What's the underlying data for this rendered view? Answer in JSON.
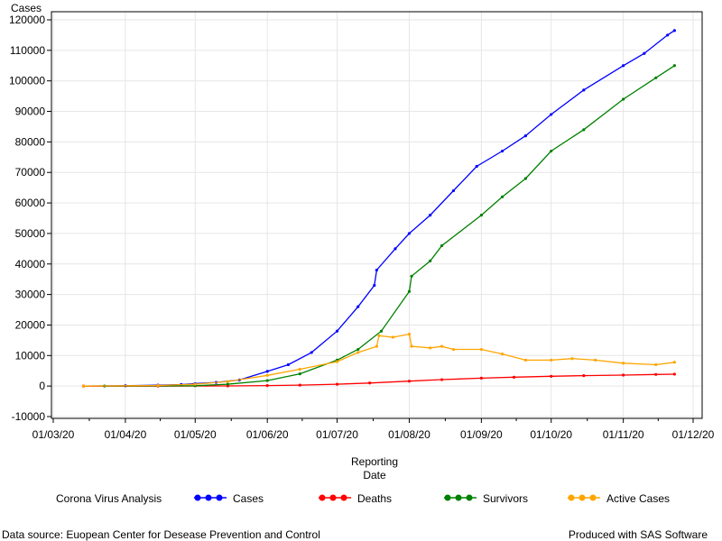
{
  "chart_data": {
    "type": "line",
    "ylabel": "Cases",
    "xlabel_lines": [
      "Reporting",
      "Date"
    ],
    "ylim": [
      -10000,
      120000
    ],
    "yticks": [
      -10000,
      0,
      10000,
      20000,
      30000,
      40000,
      50000,
      60000,
      70000,
      80000,
      90000,
      100000,
      110000,
      120000
    ],
    "xlim": [
      "2020-03-01",
      "2020-12-01"
    ],
    "xticks": [
      {
        "date": "2020-03-01",
        "label": "01/03/20"
      },
      {
        "date": "2020-04-01",
        "label": "01/04/20"
      },
      {
        "date": "2020-05-01",
        "label": "01/05/20"
      },
      {
        "date": "2020-06-01",
        "label": "01/06/20"
      },
      {
        "date": "2020-07-01",
        "label": "01/07/20"
      },
      {
        "date": "2020-08-01",
        "label": "01/08/20"
      },
      {
        "date": "2020-09-01",
        "label": "01/09/20"
      },
      {
        "date": "2020-10-01",
        "label": "01/10/20"
      },
      {
        "date": "2020-11-01",
        "label": "01/11/20"
      },
      {
        "date": "2020-12-01",
        "label": "01/12/20"
      }
    ],
    "grid": true,
    "legend_title": "Corona Virus Analysis",
    "legend_position": "bottom",
    "series": [
      {
        "name": "Cases",
        "color": "#0000ff",
        "points": [
          [
            "2020-03-14",
            0
          ],
          [
            "2020-04-01",
            100
          ],
          [
            "2020-04-15",
            300
          ],
          [
            "2020-04-25",
            500
          ],
          [
            "2020-05-01",
            800
          ],
          [
            "2020-05-10",
            1200
          ],
          [
            "2020-05-20",
            2000
          ],
          [
            "2020-06-01",
            4800
          ],
          [
            "2020-06-10",
            7000
          ],
          [
            "2020-06-20",
            11000
          ],
          [
            "2020-07-01",
            18000
          ],
          [
            "2020-07-10",
            26000
          ],
          [
            "2020-07-17",
            33000
          ],
          [
            "2020-07-18",
            38000
          ],
          [
            "2020-07-26",
            45000
          ],
          [
            "2020-08-01",
            50000
          ],
          [
            "2020-08-10",
            56000
          ],
          [
            "2020-08-20",
            64000
          ],
          [
            "2020-08-30",
            72000
          ],
          [
            "2020-09-10",
            77000
          ],
          [
            "2020-09-20",
            82000
          ],
          [
            "2020-10-01",
            89000
          ],
          [
            "2020-10-15",
            97000
          ],
          [
            "2020-11-01",
            105000
          ],
          [
            "2020-11-10",
            109000
          ],
          [
            "2020-11-20",
            115000
          ],
          [
            "2020-11-23",
            116500
          ]
        ]
      },
      {
        "name": "Deaths",
        "color": "#ff0000",
        "points": [
          [
            "2020-03-14",
            0
          ],
          [
            "2020-04-15",
            0
          ],
          [
            "2020-05-15",
            50
          ],
          [
            "2020-06-01",
            150
          ],
          [
            "2020-06-15",
            300
          ],
          [
            "2020-07-01",
            600
          ],
          [
            "2020-07-15",
            1000
          ],
          [
            "2020-08-01",
            1600
          ],
          [
            "2020-08-15",
            2100
          ],
          [
            "2020-09-01",
            2600
          ],
          [
            "2020-09-15",
            2900
          ],
          [
            "2020-10-01",
            3200
          ],
          [
            "2020-10-15",
            3400
          ],
          [
            "2020-11-01",
            3600
          ],
          [
            "2020-11-15",
            3800
          ],
          [
            "2020-11-23",
            3900
          ]
        ]
      },
      {
        "name": "Survivors",
        "color": "#008000",
        "points": [
          [
            "2020-03-23",
            0
          ],
          [
            "2020-05-01",
            100
          ],
          [
            "2020-05-15",
            600
          ],
          [
            "2020-06-01",
            1800
          ],
          [
            "2020-06-15",
            4000
          ],
          [
            "2020-07-01",
            8500
          ],
          [
            "2020-07-10",
            12000
          ],
          [
            "2020-07-20",
            18000
          ],
          [
            "2020-08-01",
            31000
          ],
          [
            "2020-08-02",
            36000
          ],
          [
            "2020-08-10",
            41000
          ],
          [
            "2020-08-15",
            46000
          ],
          [
            "2020-09-01",
            56000
          ],
          [
            "2020-09-10",
            62000
          ],
          [
            "2020-09-20",
            68000
          ],
          [
            "2020-10-01",
            77000
          ],
          [
            "2020-10-15",
            84000
          ],
          [
            "2020-11-01",
            94000
          ],
          [
            "2020-11-15",
            101000
          ],
          [
            "2020-11-23",
            105000
          ]
        ]
      },
      {
        "name": "Active Cases",
        "color": "#ffa500",
        "points": [
          [
            "2020-03-14",
            0
          ],
          [
            "2020-04-15",
            200
          ],
          [
            "2020-05-01",
            600
          ],
          [
            "2020-05-15",
            1500
          ],
          [
            "2020-06-01",
            3500
          ],
          [
            "2020-06-15",
            5500
          ],
          [
            "2020-07-01",
            8000
          ],
          [
            "2020-07-10",
            11000
          ],
          [
            "2020-07-18",
            13000
          ],
          [
            "2020-07-19",
            16500
          ],
          [
            "2020-07-25",
            16000
          ],
          [
            "2020-08-01",
            17000
          ],
          [
            "2020-08-02",
            13000
          ],
          [
            "2020-08-10",
            12500
          ],
          [
            "2020-08-15",
            13000
          ],
          [
            "2020-08-20",
            12000
          ],
          [
            "2020-09-01",
            12000
          ],
          [
            "2020-09-10",
            10500
          ],
          [
            "2020-09-20",
            8500
          ],
          [
            "2020-10-01",
            8500
          ],
          [
            "2020-10-10",
            9000
          ],
          [
            "2020-10-20",
            8500
          ],
          [
            "2020-11-01",
            7500
          ],
          [
            "2020-11-15",
            7000
          ],
          [
            "2020-11-23",
            7800
          ]
        ]
      }
    ]
  },
  "footer": {
    "source": "Data source: Euopean Center for Desease Prevention and Control",
    "producer": "Produced with SAS Software"
  }
}
